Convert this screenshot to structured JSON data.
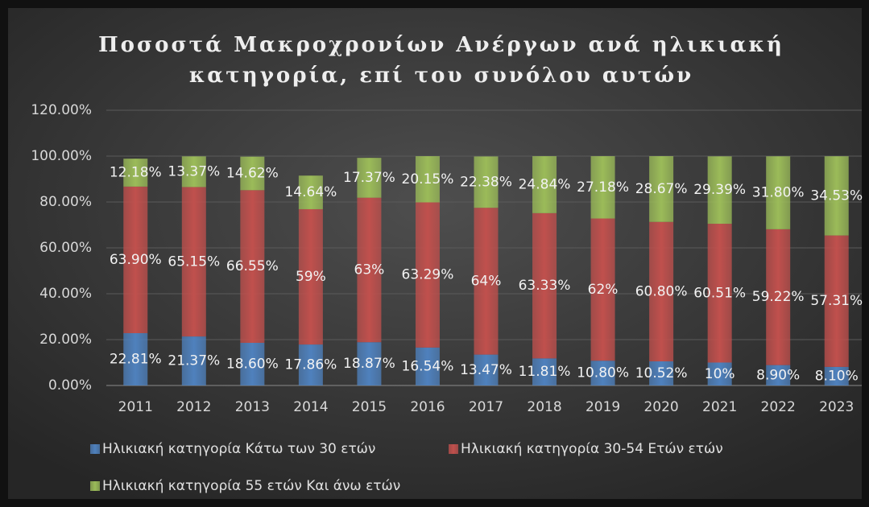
{
  "chart_data": {
    "type": "stacked_bar",
    "title": [
      "Ποσοστά Μακροχρονίων Ανέργων ανά ηλικιακή",
      "κατηγορία, επί του συνόλου αυτών"
    ],
    "categories": [
      "2011",
      "2012",
      "2013",
      "2014",
      "2015",
      "2016",
      "2017",
      "2018",
      "2019",
      "2020",
      "2021",
      "2022",
      "2023"
    ],
    "series": [
      {
        "name": "Ηλικιακή κατηγορία Κάτω των 30  ετών",
        "color": "#4f81bd",
        "values": [
          22.81,
          21.37,
          18.6,
          17.86,
          18.87,
          16.54,
          13.47,
          11.81,
          10.8,
          10.52,
          10,
          8.9,
          8.1
        ],
        "value_labels": [
          "22.81%",
          "21.37%",
          "18.60%",
          "17.86%",
          "18.87%",
          "16.54%",
          "13.47%",
          "11.81%",
          "10.80%",
          "10.52%",
          "10%",
          "8.90%",
          "8.10%"
        ]
      },
      {
        "name": "Ηλικιακή κατηγορία 30-54 Ετών ετών",
        "color": "#c0504d",
        "values": [
          63.9,
          65.15,
          66.55,
          59,
          63,
          63.29,
          64,
          63.33,
          62,
          60.8,
          60.51,
          59.22,
          57.31
        ],
        "value_labels": [
          "63.90%",
          "65.15%",
          "66.55%",
          "59%",
          "63%",
          "63.29%",
          "64%",
          "63.33%",
          "62%",
          "60.80%",
          "60.51%",
          "59.22%",
          "57.31%"
        ]
      },
      {
        "name": "Ηλικιακή κατηγορία 55 ετών  Και άνω ετών",
        "color": "#9bbb59",
        "values": [
          12.18,
          13.37,
          14.62,
          14.64,
          17.37,
          20.15,
          22.38,
          24.84,
          27.18,
          28.67,
          29.39,
          31.8,
          34.53
        ],
        "value_labels": [
          "12.18%",
          "13.37%",
          "14.62%",
          "14.64%",
          "17.37%",
          "20.15%",
          "22.38%",
          "24.84%",
          "27.18%",
          "28.67%",
          "29.39%",
          "31.80%",
          "34.53%"
        ]
      }
    ],
    "ylim": [
      0,
      120
    ],
    "yticks": [
      {
        "value": 0,
        "label": "0.00%"
      },
      {
        "value": 20,
        "label": "20.00%"
      },
      {
        "value": 40,
        "label": "40.00%"
      },
      {
        "value": 60,
        "label": "60.00%"
      },
      {
        "value": 80,
        "label": "80.00%"
      },
      {
        "value": 100,
        "label": "100.00%"
      },
      {
        "value": 120,
        "label": "120.00%"
      }
    ],
    "grid": true,
    "legend": "bottom"
  }
}
